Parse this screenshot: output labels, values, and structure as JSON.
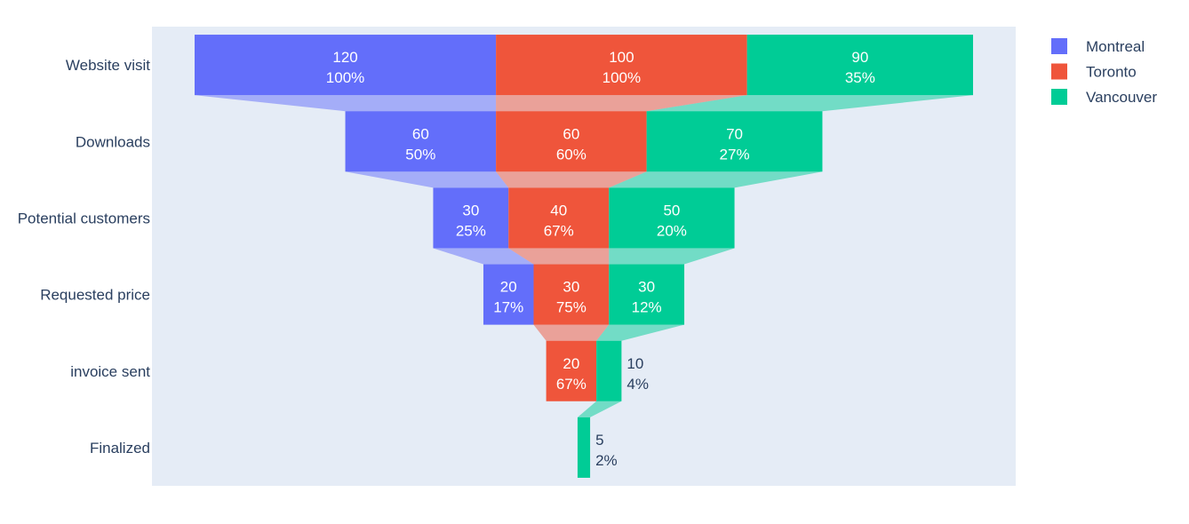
{
  "chart_data": {
    "type": "funnel",
    "stages": [
      "Website visit",
      "Downloads",
      "Potential customers",
      "Requested price",
      "invoice sent",
      "Finalized"
    ],
    "series": [
      {
        "name": "Montreal",
        "color": "#636efa",
        "values": [
          120,
          60,
          30,
          20,
          null,
          null
        ],
        "percent_labels": [
          "100%",
          "50%",
          "25%",
          "17%",
          null,
          null
        ]
      },
      {
        "name": "Toronto",
        "color": "#ef553b",
        "values": [
          100,
          60,
          40,
          30,
          20,
          null
        ],
        "percent_labels": [
          "100%",
          "60%",
          "67%",
          "75%",
          "67%",
          null
        ]
      },
      {
        "name": "Vancouver",
        "color": "#00cc96",
        "values": [
          90,
          70,
          50,
          30,
          10,
          5
        ],
        "percent_labels": [
          "35%",
          "27%",
          "20%",
          "12%",
          "4%",
          "2%"
        ]
      }
    ],
    "legend": {
      "position": "top-right",
      "entries": [
        "Montreal",
        "Toronto",
        "Vancouver"
      ]
    },
    "plot_background": "#e5ecf6",
    "text_colors": {
      "inside": "#ffffff",
      "outside": "#2a3f5f"
    }
  }
}
